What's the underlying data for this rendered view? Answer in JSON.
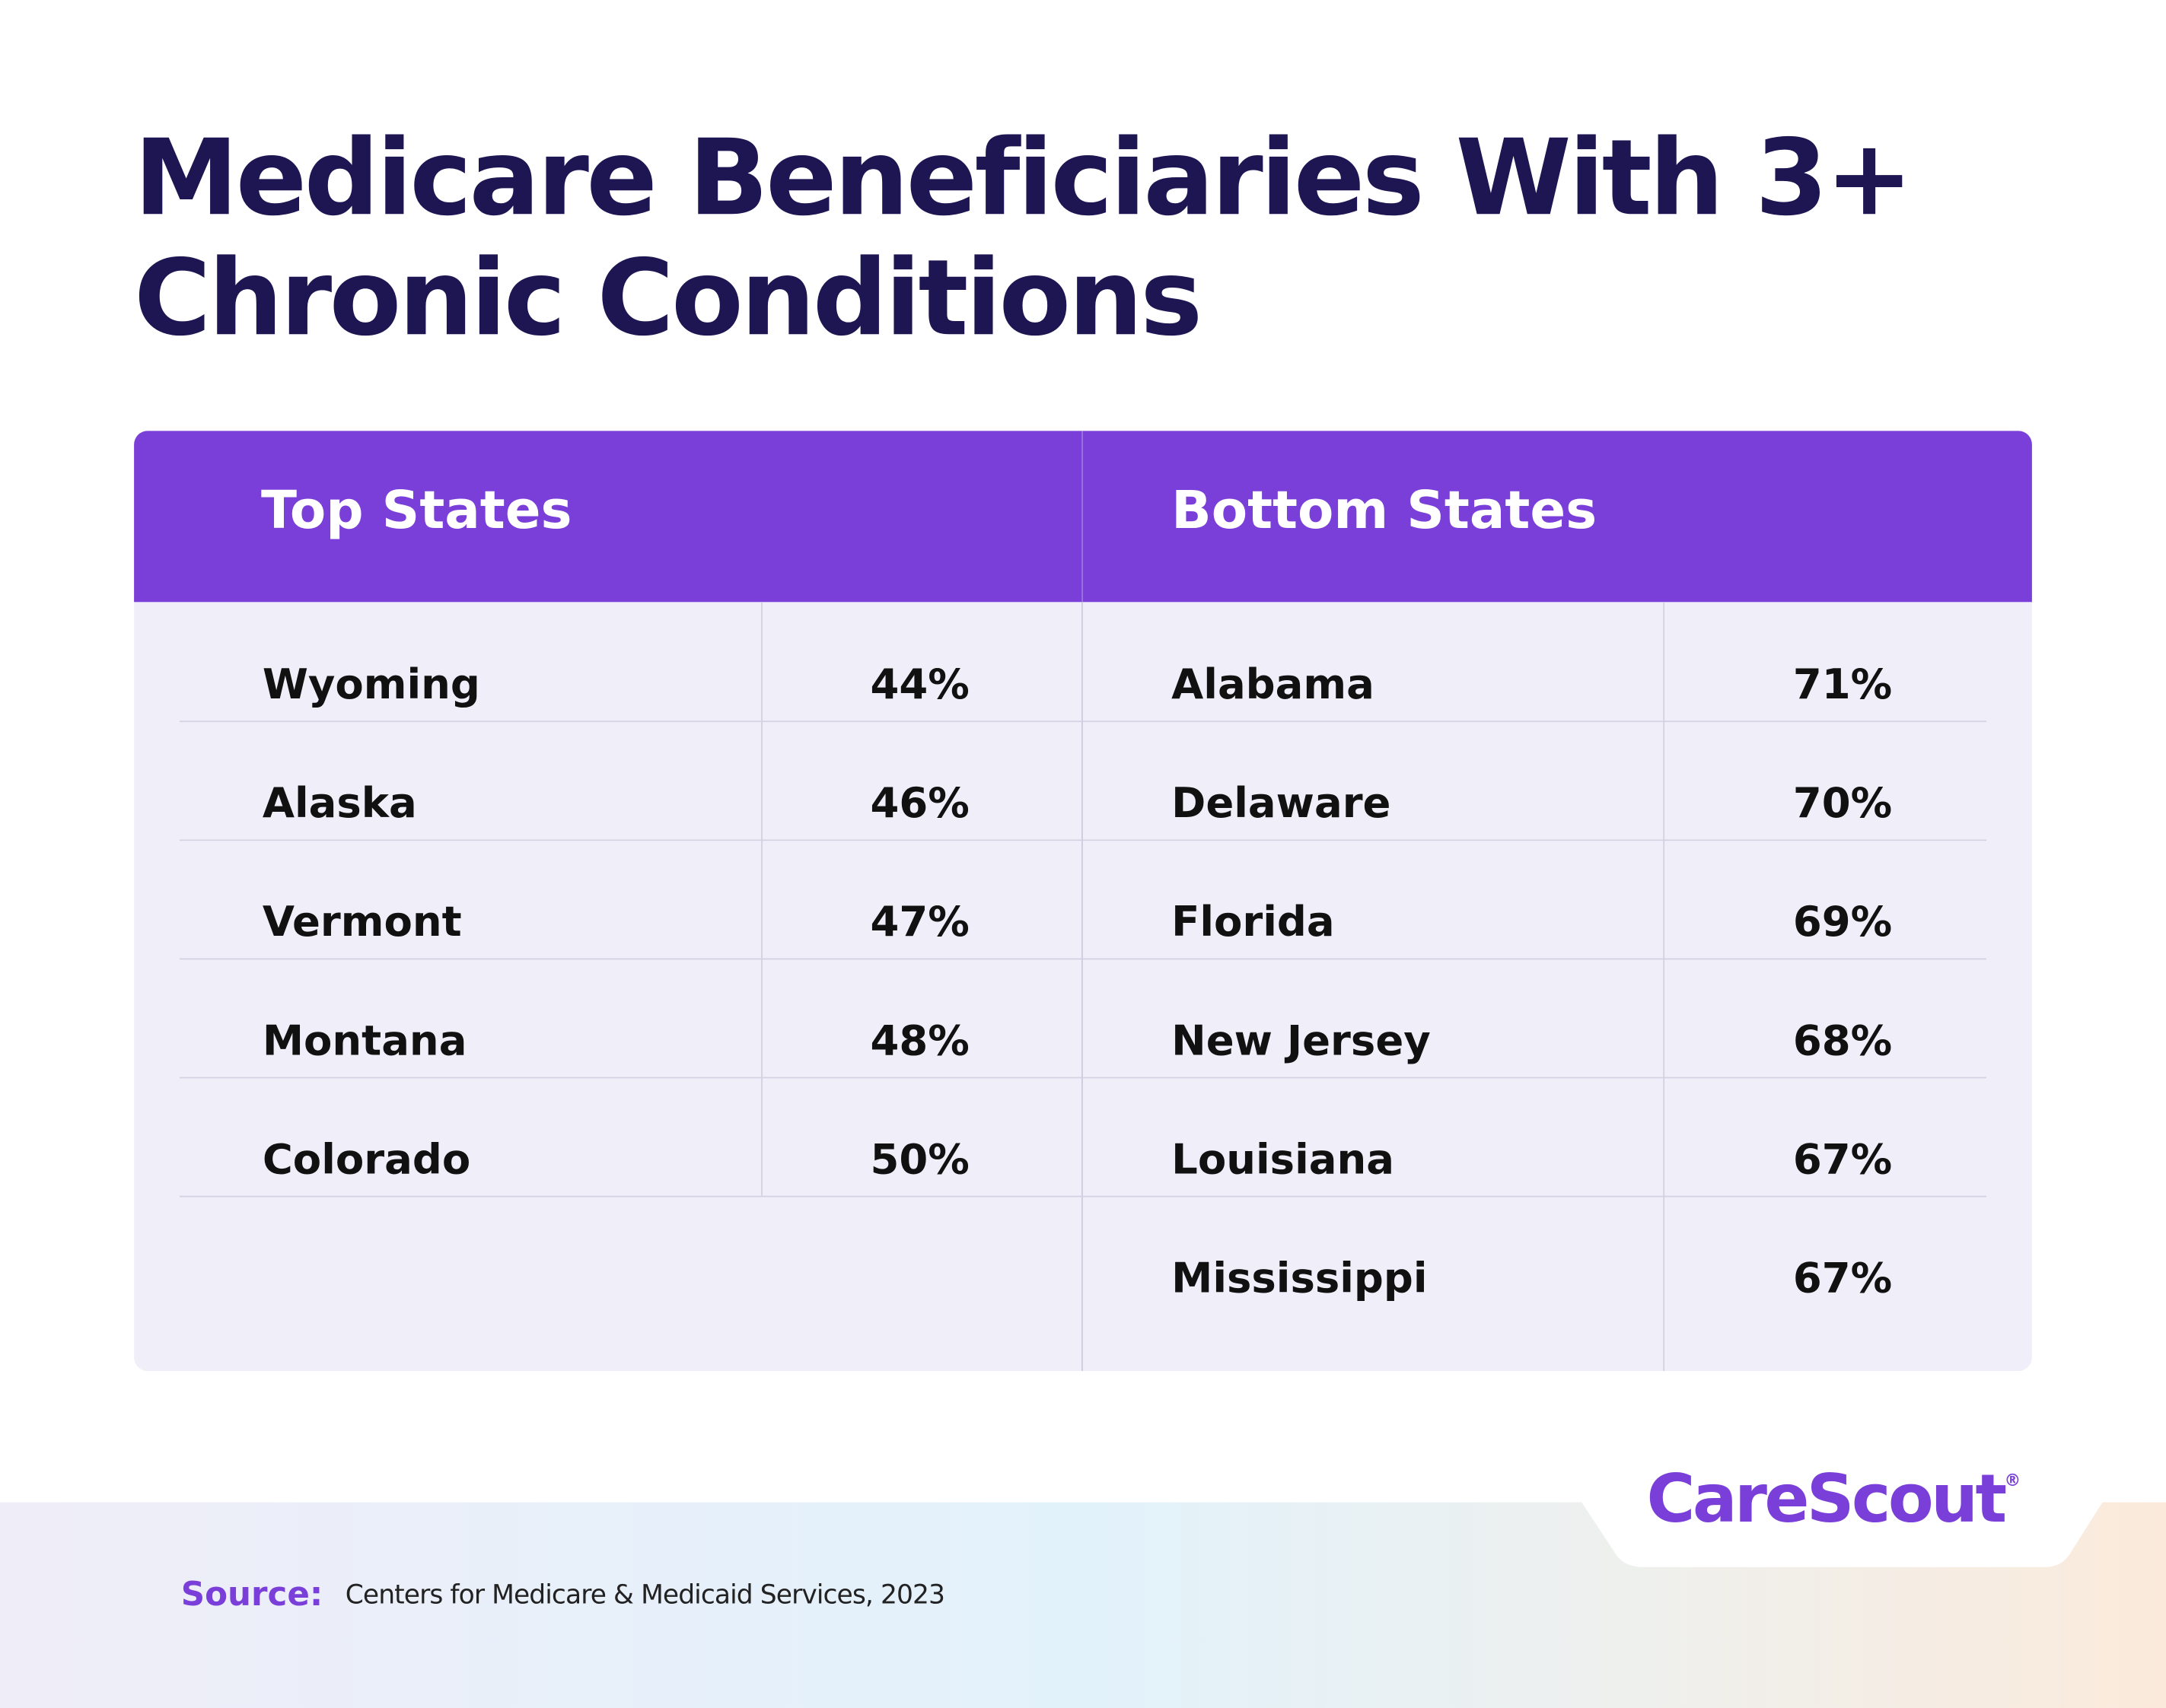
{
  "title_lines": [
    "Medicare Beneficiaries With 3+",
    "Chronic Conditions"
  ],
  "table": {
    "columns": [
      {
        "header": "Top States",
        "rows": [
          [
            "Wyoming",
            "44%"
          ],
          [
            "Alaska",
            "46%"
          ],
          [
            "Vermont",
            "47%"
          ],
          [
            "Montana",
            "48%"
          ],
          [
            "Colorado",
            "50%"
          ]
        ]
      },
      {
        "header": "Bottom States",
        "rows": [
          [
            "Alabama",
            "71%"
          ],
          [
            "Delaware",
            "70%"
          ],
          [
            "Florida",
            "69%"
          ],
          [
            "New Jersey",
            "68%"
          ],
          [
            "Louisiana",
            "67%"
          ],
          [
            "Mississippi",
            "67%"
          ]
        ]
      }
    ]
  },
  "logo": {
    "name": "CareScout",
    "mark": "®"
  },
  "source": {
    "label": "Source:",
    "text": "Centers for Medicare & Medicaid Services, 2023"
  }
}
